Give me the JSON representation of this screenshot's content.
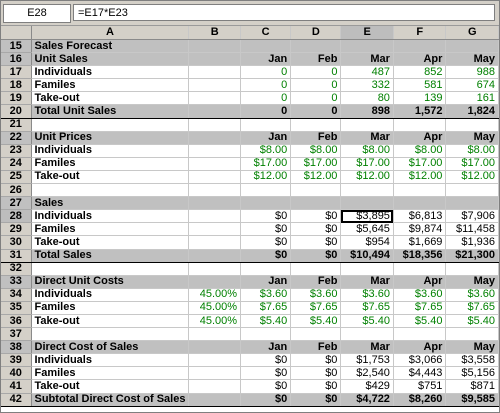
{
  "namebox": "E28",
  "formula": "=E17*E23",
  "columns": [
    "A",
    "B",
    "C",
    "D",
    "E",
    "F",
    "G"
  ],
  "rows": [
    {
      "n": "15",
      "style": "hdr",
      "c": [
        "Sales Forecast",
        "",
        "",
        "",
        "",
        "",
        ""
      ]
    },
    {
      "n": "16",
      "style": "hdr",
      "c": [
        "Unit Sales",
        "",
        "Jan",
        "Feb",
        "Mar",
        "Apr",
        "May"
      ]
    },
    {
      "n": "17",
      "style": "green",
      "c": [
        "Individuals",
        "",
        "0",
        "0",
        "487",
        "852",
        "988"
      ]
    },
    {
      "n": "18",
      "style": "green",
      "c": [
        "Familes",
        "",
        "0",
        "0",
        "332",
        "581",
        "674"
      ]
    },
    {
      "n": "19",
      "style": "green",
      "c": [
        "Take-out",
        "",
        "0",
        "0",
        "80",
        "139",
        "161"
      ]
    },
    {
      "n": "20",
      "style": "total",
      "c": [
        "Total Unit Sales",
        "",
        "0",
        "0",
        "898",
        "1,572",
        "1,824"
      ]
    },
    {
      "n": "21",
      "style": "blank",
      "c": [
        "",
        "",
        "",
        "",
        "",
        "",
        ""
      ]
    },
    {
      "n": "22",
      "style": "hdr",
      "c": [
        "Unit Prices",
        "",
        "Jan",
        "Feb",
        "Mar",
        "Apr",
        "May"
      ]
    },
    {
      "n": "23",
      "style": "price",
      "c": [
        "Individuals",
        "",
        "$8.00",
        "$8.00",
        "$8.00",
        "$8.00",
        "$8.00"
      ]
    },
    {
      "n": "24",
      "style": "price",
      "c": [
        "Familes",
        "",
        "$17.00",
        "$17.00",
        "$17.00",
        "$17.00",
        "$17.00"
      ]
    },
    {
      "n": "25",
      "style": "price",
      "c": [
        "Take-out",
        "",
        "$12.00",
        "$12.00",
        "$12.00",
        "$12.00",
        "$12.00"
      ]
    },
    {
      "n": "26",
      "style": "blank",
      "c": [
        "",
        "",
        "",
        "",
        "",
        "",
        ""
      ]
    },
    {
      "n": "27",
      "style": "hdr",
      "c": [
        "Sales",
        "",
        "",
        "",
        "",
        "",
        ""
      ]
    },
    {
      "n": "28",
      "style": "plain",
      "c": [
        "Individuals",
        "",
        "$0",
        "$0",
        "$3,895",
        "$6,813",
        "$7,906"
      ]
    },
    {
      "n": "29",
      "style": "plain",
      "c": [
        "Familes",
        "",
        "$0",
        "$0",
        "$5,645",
        "$9,874",
        "$11,458"
      ]
    },
    {
      "n": "30",
      "style": "plain",
      "c": [
        "Take-out",
        "",
        "$0",
        "$0",
        "$954",
        "$1,669",
        "$1,936"
      ]
    },
    {
      "n": "31",
      "style": "total",
      "c": [
        "Total Sales",
        "",
        "$0",
        "$0",
        "$10,494",
        "$18,356",
        "$21,300"
      ]
    },
    {
      "n": "32",
      "style": "blank",
      "c": [
        "",
        "",
        "",
        "",
        "",
        "",
        ""
      ]
    },
    {
      "n": "33",
      "style": "hdr",
      "c": [
        "Direct Unit Costs",
        "",
        "Jan",
        "Feb",
        "Mar",
        "Apr",
        "May"
      ]
    },
    {
      "n": "34",
      "style": "cost",
      "c": [
        "Individuals",
        "45.00%",
        "$3.60",
        "$3.60",
        "$3.60",
        "$3.60",
        "$3.60"
      ]
    },
    {
      "n": "35",
      "style": "cost",
      "c": [
        "Familes",
        "45.00%",
        "$7.65",
        "$7.65",
        "$7.65",
        "$7.65",
        "$7.65"
      ]
    },
    {
      "n": "36",
      "style": "cost",
      "c": [
        "Take-out",
        "45.00%",
        "$5.40",
        "$5.40",
        "$5.40",
        "$5.40",
        "$5.40"
      ]
    },
    {
      "n": "37",
      "style": "blank",
      "c": [
        "",
        "",
        "",
        "",
        "",
        "",
        ""
      ]
    },
    {
      "n": "38",
      "style": "hdr",
      "c": [
        "Direct Cost of Sales",
        "",
        "Jan",
        "Feb",
        "Mar",
        "Apr",
        "May"
      ]
    },
    {
      "n": "39",
      "style": "plain",
      "c": [
        "Individuals",
        "",
        "$0",
        "$0",
        "$1,753",
        "$3,066",
        "$3,558"
      ]
    },
    {
      "n": "40",
      "style": "plain",
      "c": [
        "Familes",
        "",
        "$0",
        "$0",
        "$2,540",
        "$4,443",
        "$5,156"
      ]
    },
    {
      "n": "41",
      "style": "plain",
      "c": [
        "Take-out",
        "",
        "$0",
        "$0",
        "$429",
        "$751",
        "$871"
      ]
    },
    {
      "n": "42",
      "style": "total",
      "c": [
        "Subtotal Direct Cost of Sales",
        "",
        "$0",
        "$0",
        "$4,722",
        "$8,260",
        "$9,585"
      ]
    }
  ]
}
